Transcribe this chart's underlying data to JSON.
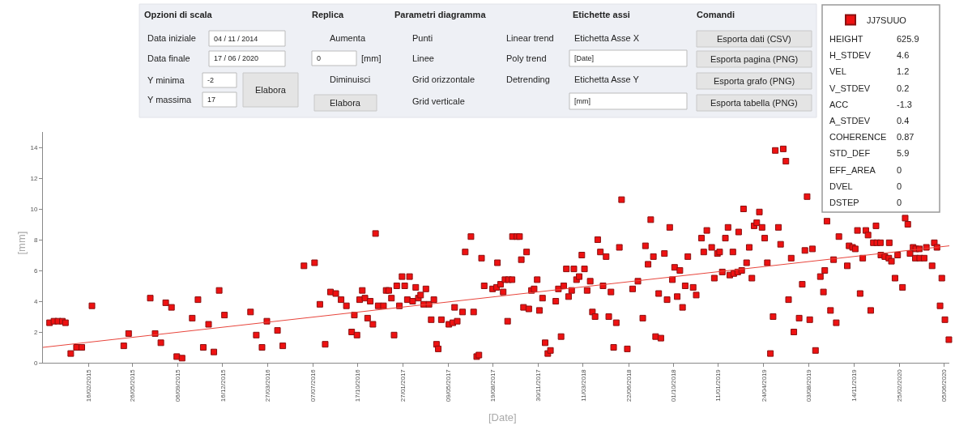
{
  "chart_data": {
    "type": "scatter",
    "xlabel": "[Date]",
    "ylabel": "[mm]",
    "grid": false,
    "legend": "top right",
    "xlim": [
      "2014-11-04",
      "2020-06-17"
    ],
    "ylim": [
      0,
      15
    ],
    "yticks": [
      0,
      2,
      4,
      6,
      8,
      10,
      12,
      14
    ],
    "xticks": [
      {
        "value": "2015-02-16",
        "label": "16/02/2015"
      },
      {
        "value": "2015-05-26",
        "label": "26/05/2015"
      },
      {
        "value": "2015-09-06",
        "label": "06/09/2015"
      },
      {
        "value": "2015-12-16",
        "label": "16/12/2015"
      },
      {
        "value": "2016-03-27",
        "label": "27/03/2016"
      },
      {
        "value": "2016-07-07",
        "label": "07/07/2016"
      },
      {
        "value": "2016-10-17",
        "label": "17/10/2016"
      },
      {
        "value": "2017-01-27",
        "label": "27/01/2017"
      },
      {
        "value": "2017-05-09",
        "label": "09/05/2017"
      },
      {
        "value": "2017-08-19",
        "label": "19/08/2017"
      },
      {
        "value": "2017-11-30",
        "label": "30/11/2017"
      },
      {
        "value": "2018-03-11",
        "label": "11/03/2018"
      },
      {
        "value": "2018-06-22",
        "label": "22/06/2018"
      },
      {
        "value": "2018-10-01",
        "label": "01/10/2018"
      },
      {
        "value": "2019-01-11",
        "label": "11/01/2019"
      },
      {
        "value": "2019-04-24",
        "label": "24/04/2019"
      },
      {
        "value": "2019-08-03",
        "label": "03/08/2019"
      },
      {
        "value": "2019-11-14",
        "label": "14/11/2019"
      },
      {
        "value": "2020-02-25",
        "label": "25/02/2020"
      },
      {
        "value": "2020-06-05",
        "label": "05/06/2020"
      }
    ],
    "series": [
      {
        "name": "JJ7SUUO",
        "marker": "square",
        "color": "#ee1111",
        "x": [
          "2014-11-19",
          "2014-11-29",
          "2014-12-08",
          "2014-12-18",
          "2014-12-25",
          "2015-01-06",
          "2015-01-19",
          "2015-01-31",
          "2015-02-23",
          "2015-05-06",
          "2015-05-17",
          "2015-07-05",
          "2015-07-16",
          "2015-07-29",
          "2015-08-09",
          "2015-08-22",
          "2015-09-03",
          "2015-09-15",
          "2015-10-08",
          "2015-10-21",
          "2015-11-02",
          "2015-11-14",
          "2015-11-26",
          "2015-12-08",
          "2015-12-20",
          "2016-02-17",
          "2016-03-01",
          "2016-03-14",
          "2016-03-25",
          "2016-04-18",
          "2016-04-30",
          "2016-06-17",
          "2016-07-11",
          "2016-07-23",
          "2016-08-04",
          "2016-08-16",
          "2016-08-28",
          "2016-09-09",
          "2016-09-21",
          "2016-10-03",
          "2016-10-09",
          "2016-10-15",
          "2016-10-21",
          "2016-10-27",
          "2016-11-02",
          "2016-11-08",
          "2016-11-14",
          "2016-11-20",
          "2016-11-26",
          "2016-12-02",
          "2016-12-14",
          "2016-12-20",
          "2016-12-26",
          "2017-01-01",
          "2017-01-07",
          "2017-01-13",
          "2017-01-19",
          "2017-01-25",
          "2017-01-31",
          "2017-02-06",
          "2017-02-11",
          "2017-02-18",
          "2017-02-25",
          "2017-03-03",
          "2017-03-08",
          "2017-03-15",
          "2017-03-20",
          "2017-03-27",
          "2017-04-01",
          "2017-04-07",
          "2017-04-13",
          "2017-04-17",
          "2017-04-24",
          "2017-05-11",
          "2017-05-20",
          "2017-05-24",
          "2017-05-30",
          "2017-06-11",
          "2017-06-17",
          "2017-06-30",
          "2017-07-06",
          "2017-07-13",
          "2017-07-18",
          "2017-07-24",
          "2017-07-30",
          "2017-08-18",
          "2017-08-27",
          "2017-08-29",
          "2017-09-05",
          "2017-09-11",
          "2017-09-15",
          "2017-09-21",
          "2017-09-23",
          "2017-10-01",
          "2017-10-02",
          "2017-10-12",
          "2017-10-18",
          "2017-10-22",
          "2017-10-27",
          "2017-11-03",
          "2017-11-08",
          "2017-11-14",
          "2017-11-20",
          "2017-11-27",
          "2017-12-02",
          "2017-12-09",
          "2017-12-15",
          "2017-12-21",
          "2017-12-27",
          "2018-01-08",
          "2018-01-14",
          "2018-01-20",
          "2018-01-26",
          "2018-02-01",
          "2018-02-06",
          "2018-02-13",
          "2018-02-18",
          "2018-02-24",
          "2018-03-02",
          "2018-03-08",
          "2018-03-14",
          "2018-03-20",
          "2018-03-27",
          "2018-04-01",
          "2018-04-07",
          "2018-04-13",
          "2018-04-19",
          "2018-04-25",
          "2018-05-02",
          "2018-05-08",
          "2018-05-13",
          "2018-05-19",
          "2018-05-25",
          "2018-06-01",
          "2018-06-06",
          "2018-06-19",
          "2018-07-01",
          "2018-07-13",
          "2018-07-24",
          "2018-07-30",
          "2018-08-05",
          "2018-08-11",
          "2018-08-17",
          "2018-08-22",
          "2018-08-29",
          "2018-09-03",
          "2018-09-11",
          "2018-09-17",
          "2018-09-23",
          "2018-09-29",
          "2018-10-04",
          "2018-10-10",
          "2018-10-16",
          "2018-10-22",
          "2018-10-28",
          "2018-11-03",
          "2018-11-15",
          "2018-11-22",
          "2018-12-04",
          "2018-12-09",
          "2018-12-16",
          "2018-12-27",
          "2019-01-02",
          "2019-01-09",
          "2019-01-14",
          "2019-01-20",
          "2019-01-27",
          "2019-02-02",
          "2019-02-06",
          "2019-02-13",
          "2019-02-15",
          "2019-02-24",
          "2019-02-26",
          "2019-03-05",
          "2019-03-09",
          "2019-03-16",
          "2019-03-22",
          "2019-03-28",
          "2019-04-02",
          "2019-04-08",
          "2019-04-14",
          "2019-04-20",
          "2019-04-26",
          "2019-05-02",
          "2019-05-09",
          "2019-05-15",
          "2019-05-20",
          "2019-05-27",
          "2019-06-01",
          "2019-06-07",
          "2019-06-13",
          "2019-06-19",
          "2019-06-25",
          "2019-07-01",
          "2019-07-13",
          "2019-07-20",
          "2019-07-26",
          "2019-07-31",
          "2019-08-06",
          "2019-08-12",
          "2019-08-19",
          "2019-08-30",
          "2019-09-06",
          "2019-09-09",
          "2019-09-14",
          "2019-09-22",
          "2019-09-29",
          "2019-10-05",
          "2019-10-11",
          "2019-10-30",
          "2019-11-03",
          "2019-11-11",
          "2019-11-17",
          "2019-11-22",
          "2019-11-28",
          "2019-12-04",
          "2019-12-11",
          "2019-12-16",
          "2019-12-22",
          "2019-12-28",
          "2020-01-03",
          "2020-01-05",
          "2020-01-13",
          "2020-01-14",
          "2020-01-23",
          "2020-02-01",
          "2020-02-02",
          "2020-02-07",
          "2020-02-15",
          "2020-02-21",
          "2020-03-03",
          "2020-03-09",
          "2020-03-15",
          "2020-03-20",
          "2020-03-27",
          "2020-04-01",
          "2020-04-02",
          "2020-04-10",
          "2020-04-11",
          "2020-04-21",
          "2020-04-26",
          "2020-05-09",
          "2020-05-14",
          "2020-05-20",
          "2020-05-27",
          "2020-05-31",
          "2020-06-07",
          "2020-06-16"
        ],
        "values": [
          2.6,
          2.7,
          2.7,
          2.7,
          2.6,
          0.6,
          1.0,
          1.0,
          3.7,
          1.1,
          1.9,
          4.2,
          1.9,
          1.3,
          3.9,
          3.6,
          0.4,
          0.3,
          2.9,
          4.1,
          1.0,
          2.5,
          0.7,
          4.7,
          3.1,
          3.3,
          1.8,
          1.0,
          2.7,
          2.1,
          1.1,
          6.3,
          6.5,
          3.8,
          1.2,
          4.6,
          4.5,
          4.1,
          3.7,
          2.0,
          3.1,
          1.8,
          4.1,
          4.7,
          4.2,
          2.9,
          4.0,
          2.5,
          8.4,
          3.7,
          3.7,
          4.7,
          4.7,
          4.2,
          1.8,
          5.0,
          3.7,
          5.6,
          5.0,
          4.1,
          5.6,
          4.0,
          4.9,
          4.2,
          4.4,
          3.8,
          4.8,
          3.8,
          2.8,
          4.1,
          1.2,
          0.9,
          2.8,
          2.5,
          2.6,
          3.6,
          2.7,
          3.3,
          7.2,
          8.2,
          3.3,
          0.4,
          0.5,
          6.8,
          5.0,
          4.8,
          4.9,
          6.5,
          5.1,
          4.6,
          5.4,
          2.7,
          5.4,
          5.4,
          8.2,
          8.2,
          8.2,
          6.7,
          3.6,
          7.2,
          3.5,
          4.7,
          4.8,
          5.4,
          3.4,
          4.2,
          1.3,
          0.6,
          0.8,
          4.0,
          4.8,
          1.7,
          5.0,
          6.1,
          4.3,
          4.7,
          6.1,
          5.4,
          5.6,
          7.0,
          6.1,
          4.7,
          5.3,
          3.3,
          3.0,
          8.0,
          7.2,
          5.0,
          6.9,
          3.0,
          4.6,
          1.0,
          2.6,
          7.5,
          10.6,
          0.9,
          4.8,
          5.3,
          2.9,
          7.6,
          6.4,
          9.3,
          6.9,
          1.7,
          4.5,
          1.6,
          7.1,
          4.1,
          8.8,
          5.4,
          6.2,
          4.3,
          6.0,
          3.6,
          5.0,
          6.9,
          4.9,
          4.4,
          8.1,
          7.2,
          8.6,
          7.5,
          5.5,
          7.1,
          7.2,
          5.9,
          8.1,
          8.8,
          5.7,
          7.2,
          5.8,
          5.9,
          8.5,
          6.0,
          10.0,
          6.5,
          7.5,
          5.5,
          8.9,
          9.1,
          9.8,
          8.8,
          8.1,
          6.5,
          0.6,
          3.0,
          13.8,
          8.8,
          7.7,
          13.9,
          13.1,
          4.1,
          6.8,
          2.0,
          2.9,
          5.1,
          7.3,
          10.8,
          2.8,
          7.4,
          0.8,
          5.6,
          4.6,
          6.0,
          9.2,
          3.4,
          6.7,
          2.6,
          8.2,
          6.3,
          7.6,
          7.5,
          7.4,
          8.6,
          4.5,
          6.8,
          8.6,
          8.3,
          3.4,
          7.8,
          8.9,
          7.8,
          7.8,
          7.0,
          6.9,
          6.8,
          7.8,
          6.6,
          5.5,
          7.0,
          4.9,
          9.4,
          9.0,
          7.1,
          7.5,
          6.8,
          7.4,
          7.4,
          6.8,
          6.8,
          7.5,
          6.3,
          7.8,
          7.5,
          3.7,
          5.5,
          2.8,
          1.5
        ]
      },
      {
        "type": "line",
        "color": "#e8453c",
        "x": [
          "2014-11-04",
          "2020-06-17"
        ],
        "values": [
          1.0,
          7.6
        ]
      }
    ],
    "annotations": [
      "Opzioni di scala",
      "Data iniziale",
      "04 / 11 / 2014",
      "Data finale",
      "17 / 06 / 2020",
      "Y minima",
      "-2",
      "Y massima",
      "17",
      "Elabora",
      "Replica",
      "Aumenta",
      "0",
      "[mm]",
      "Diminuisci",
      "Elabora",
      "Parametri diagramma",
      "Punti",
      "Linear trend",
      "Linee",
      "Poly trend",
      "Grid orizzontale",
      "Detrending",
      "Grid verticale",
      "Etichette assi",
      "Etichetta Asse X",
      "[Date]",
      "Etichetta Asse Y",
      "[mm]",
      "Comandi",
      "Esporta dati (CSV)",
      "Esporta pagina (PNG)",
      "Esporta grafo (PNG)",
      "Esporta tabella (PNG)",
      "HEIGHT",
      "625.9",
      "H_STDEV",
      "4.6",
      "VEL",
      "1.2",
      "V_STDEV",
      "0.2",
      "ACC",
      "-1.3",
      "A_STDEV",
      "0.4",
      "COHERENCE",
      "0.87",
      "STD_DEF",
      "5.9",
      "EFF_AREA",
      "0",
      "DVEL",
      "0",
      "DSTEP",
      "0"
    ]
  }
}
